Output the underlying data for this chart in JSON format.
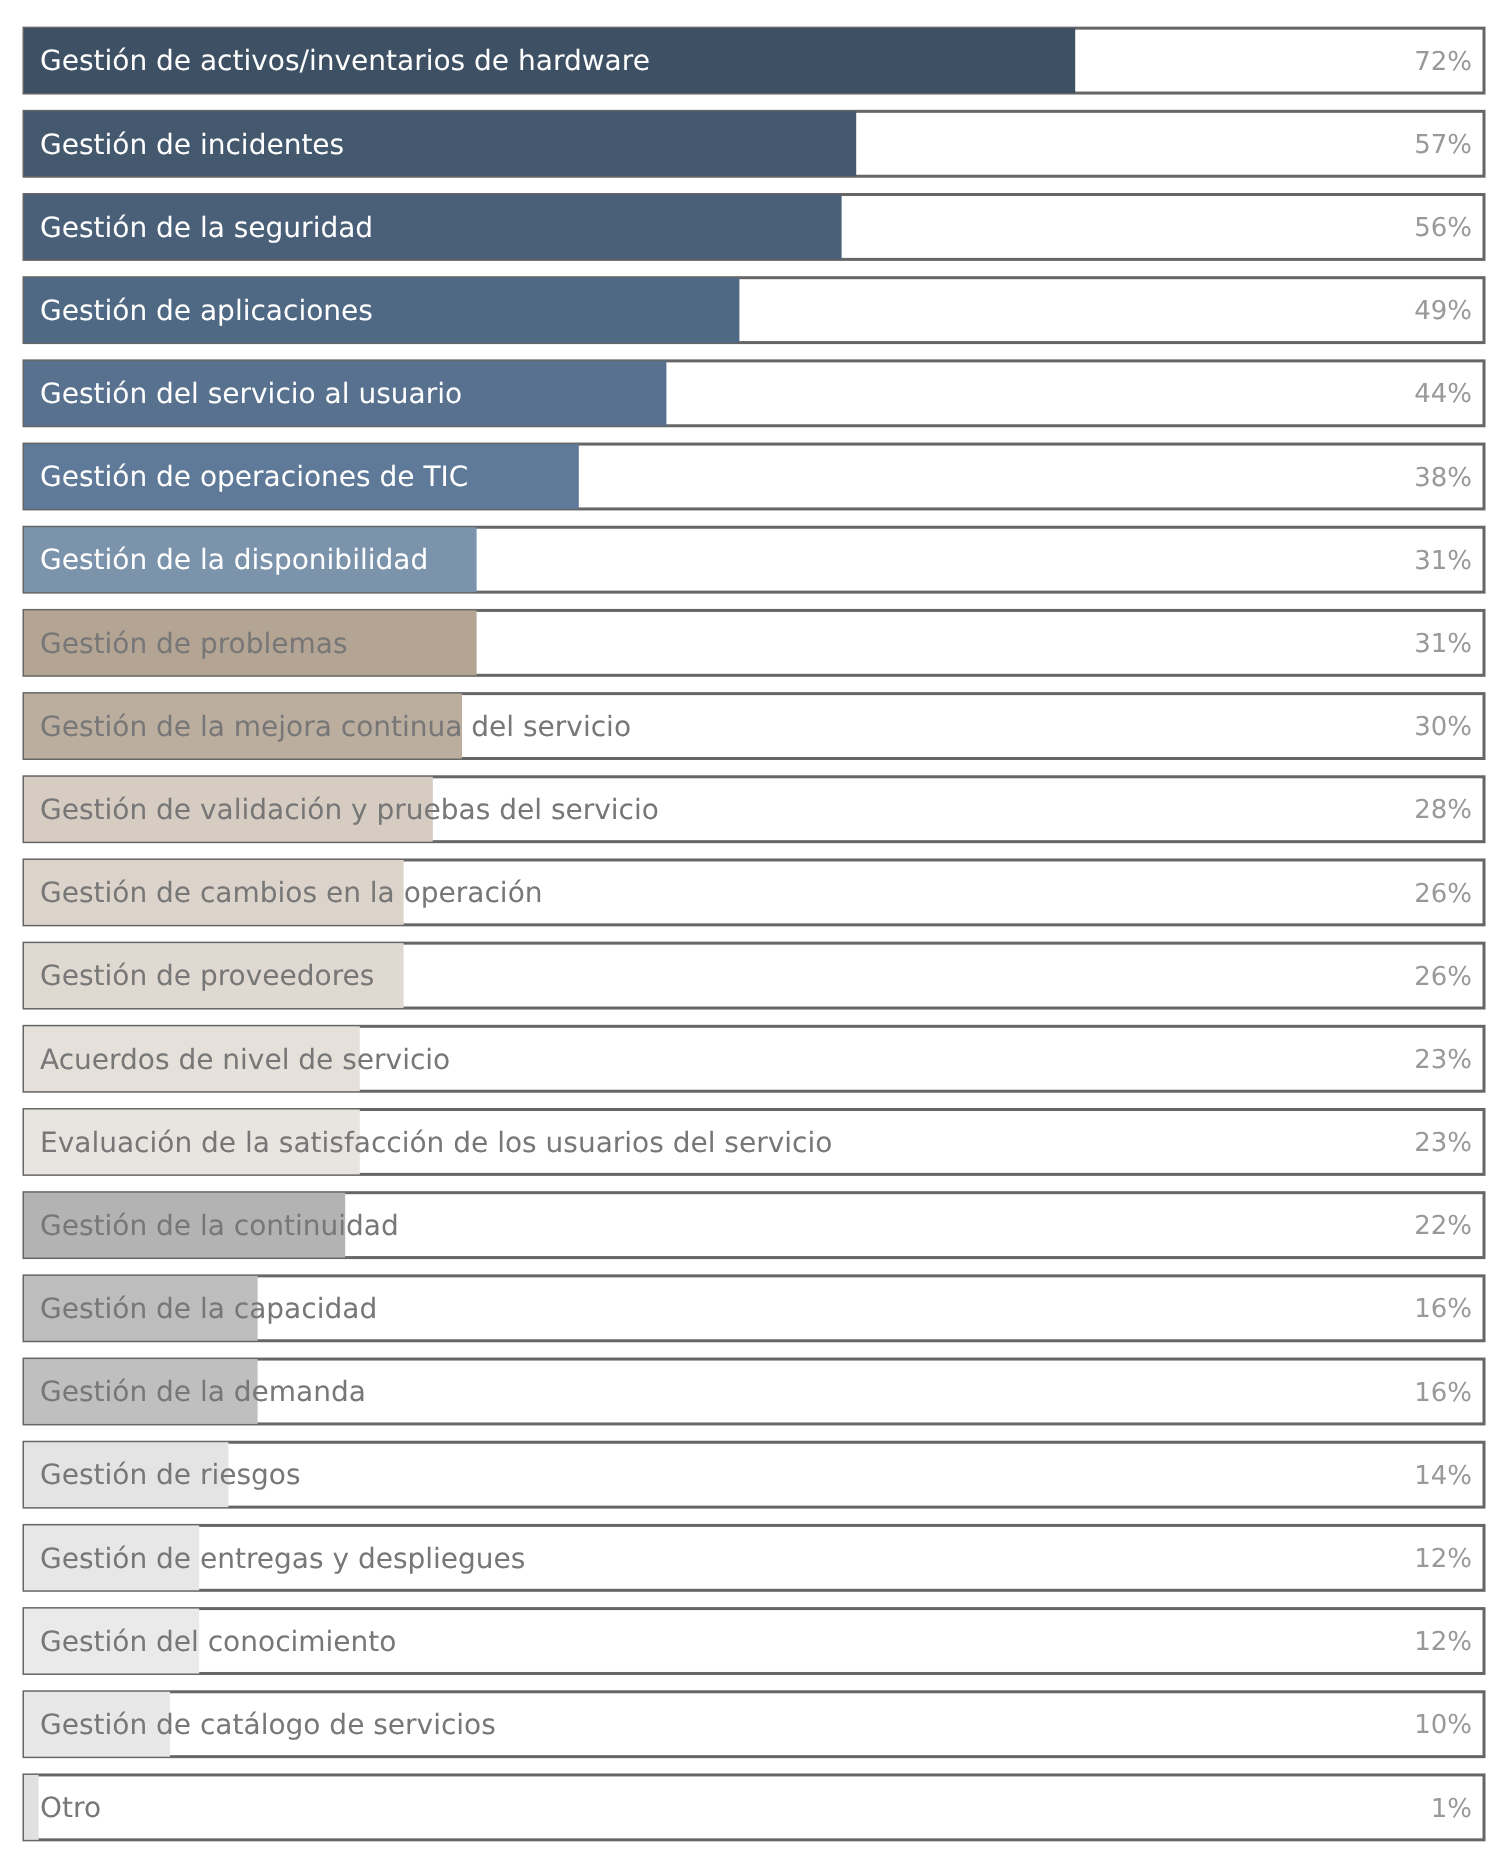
{
  "chart_data": {
    "type": "bar",
    "orientation": "horizontal",
    "xlim": [
      0,
      100
    ],
    "categories": [
      "Gestión de activos/inventarios de hardware",
      "Gestión de incidentes",
      "Gestión de la seguridad",
      "Gestión de aplicaciones",
      "Gestión del servicio al usuario",
      "Gestión de operaciones de TIC",
      "Gestión de la disponibilidad",
      "Gestión de problemas",
      "Gestión de la mejora continua del servicio",
      "Gestión de validación y pruebas del servicio",
      "Gestión de cambios en la operación",
      "Gestión de proveedores",
      "Acuerdos de nivel de servicio",
      "Evaluación de la satisfacción de los usuarios del servicio",
      "Gestión de la continuidad",
      "Gestión de la capacidad",
      "Gestión de la demanda",
      "Gestión de riesgos",
      "Gestión de entregas y despliegues",
      "Gestión del conocimiento",
      "Gestión de catálogo de servicios",
      "Otro"
    ],
    "values": [
      72,
      57,
      56,
      49,
      44,
      38,
      31,
      31,
      30,
      28,
      26,
      26,
      23,
      23,
      22,
      16,
      16,
      14,
      12,
      12,
      10,
      1
    ],
    "value_labels": [
      "72%",
      "57%",
      "56%",
      "49%",
      "44%",
      "38%",
      "31%",
      "31%",
      "30%",
      "28%",
      "26%",
      "26%",
      "23%",
      "23%",
      "22%",
      "16%",
      "16%",
      "14%",
      "12%",
      "12%",
      "10%",
      "1%"
    ],
    "colors": [
      "#3e5064",
      "#44586e",
      "#4a6079",
      "#4f6883",
      "#57718e",
      "#5f7a98",
      "#7b93ab",
      "#b4a493",
      "#bcae9f",
      "#d6ccc2",
      "#dcd3ca",
      "#e0d9d2",
      "#e5e0da",
      "#e8e4df",
      "#b3b3b3",
      "#bdbdbd",
      "#bfbfbf",
      "#e4e4e4",
      "#e7e7e7",
      "#eaeaea",
      "#e8e8e8",
      "#e0e0e0"
    ]
  }
}
